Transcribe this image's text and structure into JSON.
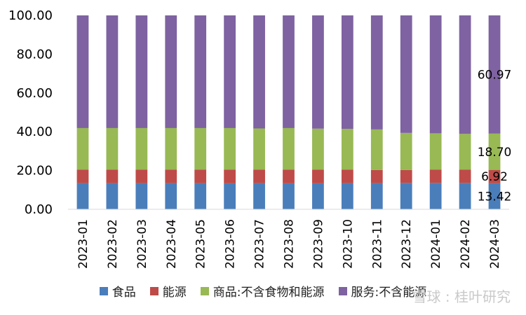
{
  "chart_data": {
    "type": "bar",
    "stacked": true,
    "categories": [
      "2023-01",
      "2023-02",
      "2023-03",
      "2023-04",
      "2023-05",
      "2023-06",
      "2023-07",
      "2023-08",
      "2023-09",
      "2023-10",
      "2023-11",
      "2023-12",
      "2024-01",
      "2024-02",
      "2024-03"
    ],
    "ylim": [
      0,
      100
    ],
    "yticks": [
      "0.00",
      "20.00",
      "40.00",
      "60.00",
      "80.00",
      "100.00"
    ],
    "grid": false,
    "legend_position": "bottom",
    "series": [
      {
        "name": "食品",
        "color": "#4a7ebb",
        "values": [
          13.5,
          13.5,
          13.5,
          13.5,
          13.5,
          13.4,
          13.5,
          13.4,
          13.4,
          13.5,
          13.5,
          13.6,
          13.6,
          13.6,
          13.42
        ]
      },
      {
        "name": "能源",
        "color": "#be4b48",
        "values": [
          7.0,
          7.0,
          7.0,
          7.0,
          7.0,
          7.1,
          7.0,
          7.1,
          7.1,
          7.0,
          6.8,
          6.7,
          6.8,
          6.8,
          6.92
        ]
      },
      {
        "name": "商品:不含食物和能源",
        "color": "#98b954",
        "values": [
          21.4,
          21.4,
          21.4,
          21.4,
          21.4,
          21.4,
          21.2,
          21.4,
          21.1,
          21.0,
          20.9,
          19.1,
          18.8,
          18.5,
          18.7
        ]
      },
      {
        "name": "服务:不含能源",
        "color": "#7e62a1",
        "values": [
          58.1,
          58.1,
          58.1,
          58.1,
          58.1,
          58.1,
          58.3,
          58.1,
          58.4,
          58.5,
          58.8,
          60.6,
          60.8,
          61.1,
          60.97
        ]
      }
    ],
    "data_labels": [
      {
        "series": 0,
        "index": 14,
        "text": "13.42"
      },
      {
        "series": 1,
        "index": 14,
        "text": "6.92"
      },
      {
        "series": 2,
        "index": 14,
        "text": "18.70"
      },
      {
        "series": 3,
        "index": 14,
        "text": "60.97"
      }
    ]
  },
  "legend": {
    "items": [
      {
        "label": "食品",
        "color": "#4a7ebb"
      },
      {
        "label": "能源",
        "color": "#be4b48"
      },
      {
        "label": "商品:不含食物和能源",
        "color": "#98b954"
      },
      {
        "label": "服务:不含能源",
        "color": "#7e62a1"
      }
    ]
  },
  "watermark": {
    "text": "雪球 : 桂叶研究"
  }
}
